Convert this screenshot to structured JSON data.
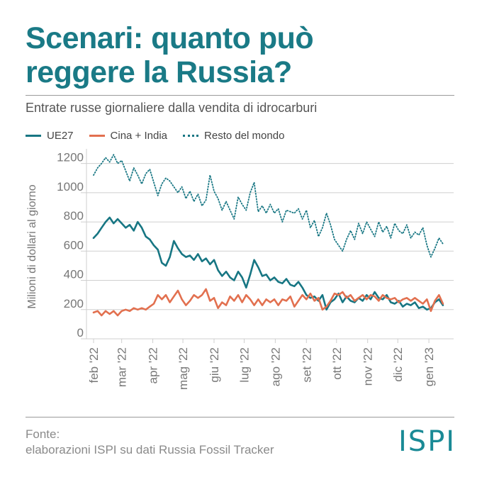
{
  "header": {
    "title_line1": "Scenari: quanto può",
    "title_line2": "reggere la Russia?",
    "subtitle": "Entrate russe giornaliere dalla vendita di idrocarburi"
  },
  "footer": {
    "source_line1": "Fonte:",
    "source_line2": "elaborazioni ISPI su dati Russia Fossil Tracker",
    "logo": "ISPI"
  },
  "colors": {
    "accent": "#1a7a86",
    "ue27": "#177683",
    "cina_india": "#e2704f",
    "resto": "#177683"
  },
  "chart_data": {
    "type": "line",
    "ylabel": "Milioni di dollari al giorno",
    "ylim": [
      0,
      1300
    ],
    "yticks": [
      0,
      200,
      400,
      600,
      800,
      1000,
      1200
    ],
    "x_range": [
      "2022-02-01",
      "2023-01-20"
    ],
    "xticks": [
      {
        "label": "feb '22",
        "date": "2022-02-01"
      },
      {
        "label": "mar '22",
        "date": "2022-03-01"
      },
      {
        "label": "apr '22",
        "date": "2022-04-01"
      },
      {
        "label": "mag '22",
        "date": "2022-05-01"
      },
      {
        "label": "giu '22",
        "date": "2022-06-01"
      },
      {
        "label": "lug '22",
        "date": "2022-07-01"
      },
      {
        "label": "ago '22",
        "date": "2022-08-01"
      },
      {
        "label": "set '22",
        "date": "2022-09-01"
      },
      {
        "label": "ott '22",
        "date": "2022-10-01"
      },
      {
        "label": "nov '22",
        "date": "2022-11-01"
      },
      {
        "label": "dic '22",
        "date": "2022-12-01"
      },
      {
        "label": "gen '23",
        "date": "2023-01-01"
      }
    ],
    "series": [
      {
        "name": "UE27",
        "style": "solid",
        "color": "#177683",
        "points": [
          [
            "2022-02-01",
            690
          ],
          [
            "2022-02-05",
            720
          ],
          [
            "2022-02-09",
            760
          ],
          [
            "2022-02-13",
            800
          ],
          [
            "2022-02-17",
            830
          ],
          [
            "2022-02-21",
            790
          ],
          [
            "2022-02-25",
            820
          ],
          [
            "2022-03-01",
            790
          ],
          [
            "2022-03-05",
            760
          ],
          [
            "2022-03-09",
            780
          ],
          [
            "2022-03-13",
            740
          ],
          [
            "2022-03-17",
            800
          ],
          [
            "2022-03-21",
            760
          ],
          [
            "2022-03-25",
            700
          ],
          [
            "2022-03-29",
            680
          ],
          [
            "2022-04-02",
            640
          ],
          [
            "2022-04-06",
            610
          ],
          [
            "2022-04-10",
            520
          ],
          [
            "2022-04-14",
            500
          ],
          [
            "2022-04-18",
            560
          ],
          [
            "2022-04-22",
            670
          ],
          [
            "2022-04-26",
            620
          ],
          [
            "2022-04-30",
            580
          ],
          [
            "2022-05-04",
            560
          ],
          [
            "2022-05-08",
            570
          ],
          [
            "2022-05-12",
            540
          ],
          [
            "2022-05-16",
            580
          ],
          [
            "2022-05-20",
            530
          ],
          [
            "2022-05-24",
            550
          ],
          [
            "2022-05-28",
            510
          ],
          [
            "2022-06-01",
            540
          ],
          [
            "2022-06-05",
            470
          ],
          [
            "2022-06-09",
            430
          ],
          [
            "2022-06-13",
            460
          ],
          [
            "2022-06-17",
            420
          ],
          [
            "2022-06-21",
            400
          ],
          [
            "2022-06-25",
            460
          ],
          [
            "2022-06-29",
            420
          ],
          [
            "2022-07-03",
            350
          ],
          [
            "2022-07-07",
            440
          ],
          [
            "2022-07-11",
            540
          ],
          [
            "2022-07-15",
            490
          ],
          [
            "2022-07-19",
            430
          ],
          [
            "2022-07-23",
            440
          ],
          [
            "2022-07-27",
            400
          ],
          [
            "2022-07-31",
            420
          ],
          [
            "2022-08-04",
            390
          ],
          [
            "2022-08-08",
            380
          ],
          [
            "2022-08-12",
            410
          ],
          [
            "2022-08-16",
            370
          ],
          [
            "2022-08-20",
            360
          ],
          [
            "2022-08-24",
            390
          ],
          [
            "2022-08-28",
            350
          ],
          [
            "2022-09-01",
            300
          ],
          [
            "2022-09-05",
            280
          ],
          [
            "2022-09-09",
            290
          ],
          [
            "2022-09-13",
            260
          ],
          [
            "2022-09-17",
            300
          ],
          [
            "2022-09-21",
            200
          ],
          [
            "2022-09-25",
            250
          ],
          [
            "2022-09-29",
            270
          ],
          [
            "2022-10-03",
            310
          ],
          [
            "2022-10-07",
            250
          ],
          [
            "2022-10-11",
            290
          ],
          [
            "2022-10-15",
            260
          ],
          [
            "2022-10-19",
            250
          ],
          [
            "2022-10-23",
            280
          ],
          [
            "2022-10-27",
            260
          ],
          [
            "2022-10-31",
            300
          ],
          [
            "2022-11-04",
            270
          ],
          [
            "2022-11-08",
            320
          ],
          [
            "2022-11-12",
            280
          ],
          [
            "2022-11-16",
            270
          ],
          [
            "2022-11-20",
            300
          ],
          [
            "2022-11-24",
            250
          ],
          [
            "2022-11-28",
            240
          ],
          [
            "2022-12-02",
            260
          ],
          [
            "2022-12-06",
            220
          ],
          [
            "2022-12-10",
            240
          ],
          [
            "2022-12-14",
            230
          ],
          [
            "2022-12-18",
            250
          ],
          [
            "2022-12-22",
            210
          ],
          [
            "2022-12-26",
            220
          ],
          [
            "2022-12-30",
            200
          ],
          [
            "2023-01-03",
            210
          ],
          [
            "2023-01-07",
            250
          ],
          [
            "2023-01-11",
            270
          ],
          [
            "2023-01-15",
            230
          ]
        ]
      },
      {
        "name": "Cina + India",
        "style": "solid",
        "color": "#e2704f",
        "points": [
          [
            "2022-02-01",
            180
          ],
          [
            "2022-02-05",
            190
          ],
          [
            "2022-02-09",
            160
          ],
          [
            "2022-02-13",
            190
          ],
          [
            "2022-02-17",
            170
          ],
          [
            "2022-02-21",
            190
          ],
          [
            "2022-02-25",
            160
          ],
          [
            "2022-03-01",
            190
          ],
          [
            "2022-03-05",
            200
          ],
          [
            "2022-03-09",
            190
          ],
          [
            "2022-03-13",
            210
          ],
          [
            "2022-03-17",
            200
          ],
          [
            "2022-03-21",
            210
          ],
          [
            "2022-03-25",
            200
          ],
          [
            "2022-03-29",
            220
          ],
          [
            "2022-04-02",
            240
          ],
          [
            "2022-04-06",
            300
          ],
          [
            "2022-04-10",
            270
          ],
          [
            "2022-04-14",
            300
          ],
          [
            "2022-04-18",
            250
          ],
          [
            "2022-04-22",
            290
          ],
          [
            "2022-04-26",
            330
          ],
          [
            "2022-04-30",
            270
          ],
          [
            "2022-05-04",
            230
          ],
          [
            "2022-05-08",
            260
          ],
          [
            "2022-05-12",
            300
          ],
          [
            "2022-05-16",
            280
          ],
          [
            "2022-05-20",
            300
          ],
          [
            "2022-05-24",
            340
          ],
          [
            "2022-05-28",
            260
          ],
          [
            "2022-06-01",
            280
          ],
          [
            "2022-06-05",
            210
          ],
          [
            "2022-06-09",
            250
          ],
          [
            "2022-06-13",
            230
          ],
          [
            "2022-06-17",
            290
          ],
          [
            "2022-06-21",
            260
          ],
          [
            "2022-06-25",
            300
          ],
          [
            "2022-06-29",
            250
          ],
          [
            "2022-07-03",
            300
          ],
          [
            "2022-07-07",
            270
          ],
          [
            "2022-07-11",
            230
          ],
          [
            "2022-07-15",
            270
          ],
          [
            "2022-07-19",
            230
          ],
          [
            "2022-07-23",
            270
          ],
          [
            "2022-07-27",
            250
          ],
          [
            "2022-07-31",
            270
          ],
          [
            "2022-08-04",
            230
          ],
          [
            "2022-08-08",
            270
          ],
          [
            "2022-08-12",
            260
          ],
          [
            "2022-08-16",
            290
          ],
          [
            "2022-08-20",
            220
          ],
          [
            "2022-08-24",
            260
          ],
          [
            "2022-08-28",
            300
          ],
          [
            "2022-09-01",
            270
          ],
          [
            "2022-09-05",
            310
          ],
          [
            "2022-09-09",
            260
          ],
          [
            "2022-09-13",
            280
          ],
          [
            "2022-09-17",
            200
          ],
          [
            "2022-09-21",
            220
          ],
          [
            "2022-09-25",
            260
          ],
          [
            "2022-09-29",
            310
          ],
          [
            "2022-10-03",
            300
          ],
          [
            "2022-10-07",
            320
          ],
          [
            "2022-10-11",
            280
          ],
          [
            "2022-10-15",
            300
          ],
          [
            "2022-10-19",
            260
          ],
          [
            "2022-10-23",
            280
          ],
          [
            "2022-10-27",
            300
          ],
          [
            "2022-10-31",
            270
          ],
          [
            "2022-11-04",
            300
          ],
          [
            "2022-11-08",
            290
          ],
          [
            "2022-11-12",
            260
          ],
          [
            "2022-11-16",
            300
          ],
          [
            "2022-11-20",
            280
          ],
          [
            "2022-11-24",
            270
          ],
          [
            "2022-11-28",
            280
          ],
          [
            "2022-12-02",
            250
          ],
          [
            "2022-12-06",
            270
          ],
          [
            "2022-12-10",
            280
          ],
          [
            "2022-12-14",
            260
          ],
          [
            "2022-12-18",
            280
          ],
          [
            "2022-12-22",
            260
          ],
          [
            "2022-12-26",
            240
          ],
          [
            "2022-12-30",
            270
          ],
          [
            "2023-01-03",
            190
          ],
          [
            "2023-01-07",
            260
          ],
          [
            "2023-01-11",
            300
          ],
          [
            "2023-01-15",
            240
          ]
        ]
      },
      {
        "name": "Resto del mondo",
        "style": "dotted",
        "color": "#177683",
        "points": [
          [
            "2022-02-01",
            1120
          ],
          [
            "2022-02-05",
            1170
          ],
          [
            "2022-02-09",
            1200
          ],
          [
            "2022-02-13",
            1240
          ],
          [
            "2022-02-17",
            1210
          ],
          [
            "2022-02-21",
            1260
          ],
          [
            "2022-02-25",
            1200
          ],
          [
            "2022-03-01",
            1220
          ],
          [
            "2022-03-05",
            1150
          ],
          [
            "2022-03-09",
            1080
          ],
          [
            "2022-03-13",
            1170
          ],
          [
            "2022-03-17",
            1120
          ],
          [
            "2022-03-21",
            1060
          ],
          [
            "2022-03-25",
            1130
          ],
          [
            "2022-03-29",
            1160
          ],
          [
            "2022-04-02",
            1070
          ],
          [
            "2022-04-06",
            980
          ],
          [
            "2022-04-10",
            1060
          ],
          [
            "2022-04-14",
            1100
          ],
          [
            "2022-04-18",
            1080
          ],
          [
            "2022-04-22",
            1040
          ],
          [
            "2022-04-26",
            1000
          ],
          [
            "2022-04-30",
            1040
          ],
          [
            "2022-05-04",
            960
          ],
          [
            "2022-05-08",
            1010
          ],
          [
            "2022-05-12",
            940
          ],
          [
            "2022-05-16",
            990
          ],
          [
            "2022-05-20",
            910
          ],
          [
            "2022-05-24",
            950
          ],
          [
            "2022-05-28",
            1120
          ],
          [
            "2022-06-01",
            1010
          ],
          [
            "2022-06-05",
            960
          ],
          [
            "2022-06-09",
            880
          ],
          [
            "2022-06-13",
            940
          ],
          [
            "2022-06-17",
            880
          ],
          [
            "2022-06-21",
            820
          ],
          [
            "2022-06-25",
            970
          ],
          [
            "2022-06-29",
            920
          ],
          [
            "2022-07-03",
            880
          ],
          [
            "2022-07-07",
            1000
          ],
          [
            "2022-07-11",
            1070
          ],
          [
            "2022-07-15",
            870
          ],
          [
            "2022-07-19",
            910
          ],
          [
            "2022-07-23",
            860
          ],
          [
            "2022-07-27",
            920
          ],
          [
            "2022-07-31",
            860
          ],
          [
            "2022-08-04",
            890
          ],
          [
            "2022-08-08",
            800
          ],
          [
            "2022-08-12",
            880
          ],
          [
            "2022-08-16",
            870
          ],
          [
            "2022-08-20",
            860
          ],
          [
            "2022-08-24",
            890
          ],
          [
            "2022-08-28",
            820
          ],
          [
            "2022-09-01",
            880
          ],
          [
            "2022-09-05",
            760
          ],
          [
            "2022-09-09",
            810
          ],
          [
            "2022-09-13",
            700
          ],
          [
            "2022-09-17",
            760
          ],
          [
            "2022-09-21",
            860
          ],
          [
            "2022-09-25",
            780
          ],
          [
            "2022-09-29",
            680
          ],
          [
            "2022-10-03",
            640
          ],
          [
            "2022-10-07",
            600
          ],
          [
            "2022-10-11",
            680
          ],
          [
            "2022-10-15",
            740
          ],
          [
            "2022-10-19",
            680
          ],
          [
            "2022-10-23",
            790
          ],
          [
            "2022-10-27",
            720
          ],
          [
            "2022-10-31",
            800
          ],
          [
            "2022-11-04",
            750
          ],
          [
            "2022-11-08",
            700
          ],
          [
            "2022-11-12",
            800
          ],
          [
            "2022-11-16",
            730
          ],
          [
            "2022-11-20",
            770
          ],
          [
            "2022-11-24",
            690
          ],
          [
            "2022-11-28",
            790
          ],
          [
            "2022-12-02",
            740
          ],
          [
            "2022-12-06",
            720
          ],
          [
            "2022-12-10",
            780
          ],
          [
            "2022-12-14",
            690
          ],
          [
            "2022-12-18",
            730
          ],
          [
            "2022-12-22",
            710
          ],
          [
            "2022-12-26",
            760
          ],
          [
            "2022-12-30",
            640
          ],
          [
            "2023-01-03",
            560
          ],
          [
            "2023-01-07",
            620
          ],
          [
            "2023-01-11",
            690
          ],
          [
            "2023-01-15",
            650
          ]
        ]
      }
    ]
  }
}
